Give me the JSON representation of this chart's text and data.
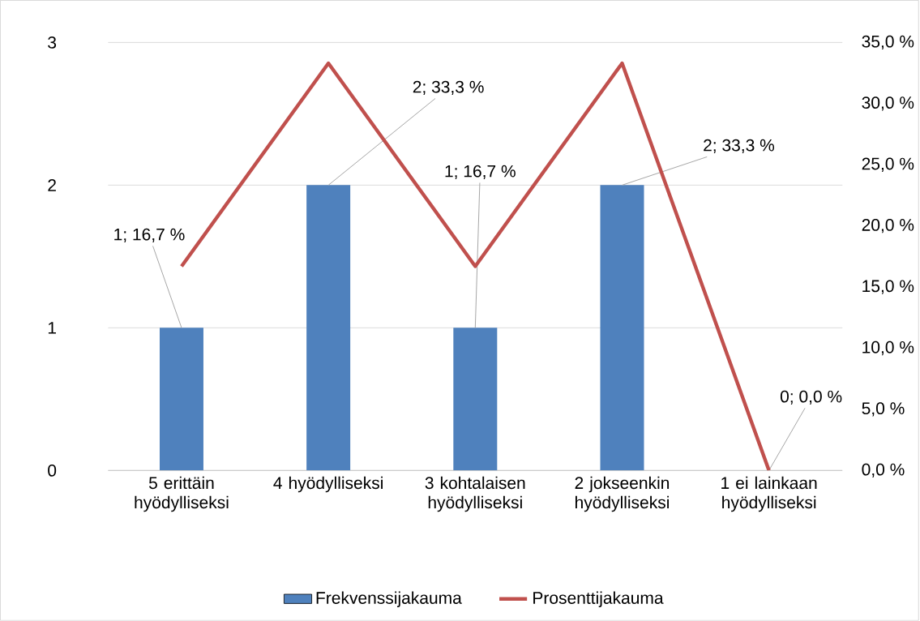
{
  "chart_data": {
    "type": "bar",
    "categories": [
      "5 erittäin hyödylliseksi",
      "4 hyödylliseksi",
      "3 kohtalaisen hyödylliseksi",
      "2 jokseenkin hyödylliseksi",
      "1 ei lainkaan hyödylliseksi"
    ],
    "series": [
      {
        "name": "Frekvenssijakauma",
        "color": "#4f81bd",
        "values": [
          1,
          2,
          1,
          2,
          0
        ],
        "value_labels": [
          "1; 16,7 %",
          "2; 33,3 %",
          "1; 16,7 %",
          "2; 33,3 %",
          "0; 0,0 %"
        ]
      },
      {
        "name": "Prosenttijakauma",
        "type": "line",
        "axis": "y2",
        "color": "#c0504d",
        "values": [
          16.7,
          33.3,
          16.7,
          33.3,
          0.0
        ]
      }
    ],
    "ylim": [
      0,
      3
    ],
    "yticks": [
      0,
      1,
      2,
      3
    ],
    "y2lim": [
      0,
      35
    ],
    "y2ticks": [
      {
        "value": 0,
        "label": "0,0 %"
      },
      {
        "value": 5,
        "label": "5,0 %"
      },
      {
        "value": 10,
        "label": "10,0 %"
      },
      {
        "value": 15,
        "label": "15,0 %"
      },
      {
        "value": 20,
        "label": "20,0 %"
      },
      {
        "value": 25,
        "label": "25,0 %"
      },
      {
        "value": 30,
        "label": "30,0 %"
      },
      {
        "value": 35,
        "label": "35,0 %"
      }
    ],
    "grid": "y",
    "legend": "bottom"
  }
}
